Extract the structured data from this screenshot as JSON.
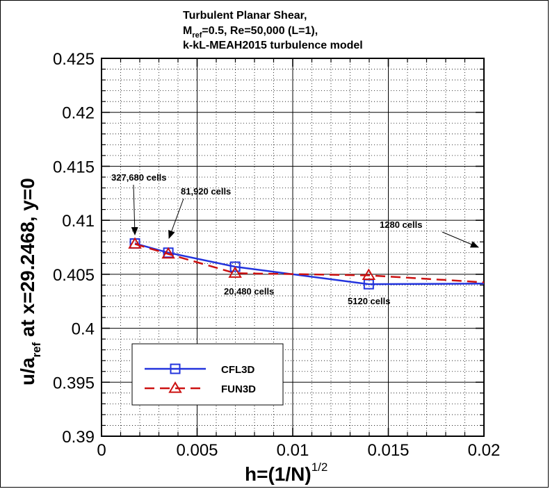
{
  "chart_data": {
    "type": "line",
    "title_lines": [
      "Turbulent Planar Shear,",
      "k-kL-MEAH2015 turbulence model"
    ],
    "title_line2": {
      "prefix": "M",
      "prefix_sub": "ref",
      "rest": "=0.5, Re=50,000 (L=1),"
    },
    "xlabel": {
      "main": "h=(1/N)",
      "sup": "1/2"
    },
    "ylabel": {
      "main": "u/a",
      "sub": "ref",
      "rest": " at x=29.2468, y=0"
    },
    "xlim": [
      0,
      0.02
    ],
    "ylim": [
      0.39,
      0.425
    ],
    "x_ticks": [
      "0",
      "0.005",
      "0.01",
      "0.015",
      "0.02"
    ],
    "x_tick_values": [
      0,
      0.005,
      0.01,
      0.015,
      0.02
    ],
    "y_ticks": [
      "0.39",
      "0.395",
      "0.4",
      "0.405",
      "0.41",
      "0.415",
      "0.42",
      "0.425"
    ],
    "y_tick_values": [
      0.39,
      0.395,
      0.4,
      0.405,
      0.41,
      0.415,
      0.42,
      0.425
    ],
    "grid": true,
    "legend_placement": "bottom-left",
    "series": [
      {
        "name": "CFL3D",
        "color": "#2233dd",
        "marker": "square",
        "dash": "solid",
        "points": [
          {
            "x": 0.00174693,
            "y": 0.40785
          },
          {
            "x": 0.00349386,
            "y": 0.407
          },
          {
            "x": 0.00698771,
            "y": 0.4057
          },
          {
            "x": 0.01397542,
            "y": 0.40408
          },
          {
            "x": 0.02795085,
            "y": 0.40421
          }
        ]
      },
      {
        "name": "FUN3D",
        "color": "#cc1111",
        "marker": "triangle",
        "dash": "dashed",
        "points": [
          {
            "x": 0.00174693,
            "y": 0.4078
          },
          {
            "x": 0.00349386,
            "y": 0.40688
          },
          {
            "x": 0.00698771,
            "y": 0.4051
          },
          {
            "x": 0.01397542,
            "y": 0.4049
          },
          {
            "x": 0.02795085,
            "y": 0.4034
          }
        ]
      }
    ],
    "annotations": [
      {
        "text": "327,680 cells"
      },
      {
        "text": "81,920 cells"
      },
      {
        "text": "20,480 cells"
      },
      {
        "text": "5120 cells"
      },
      {
        "text": "1280 cells"
      }
    ]
  }
}
